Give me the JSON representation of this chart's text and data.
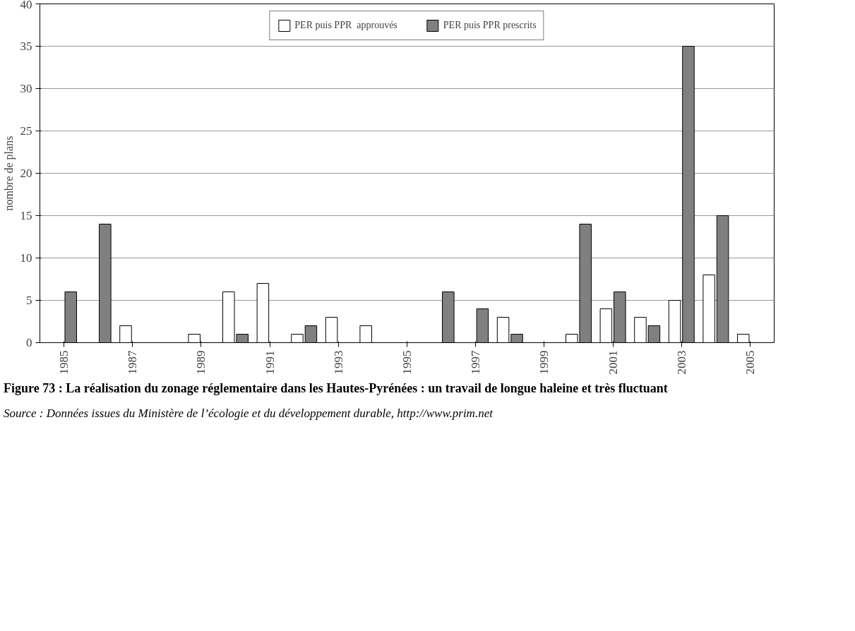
{
  "chart_data": {
    "type": "bar",
    "title": "Figure 73 : La réalisation du zonage réglementaire dans les Hautes-Pyrénées : un travail de longue haleine et très fluctuant",
    "ylabel": "nombre de plans",
    "categories": [
      "1985",
      null,
      "1987",
      null,
      "1989",
      null,
      "1991",
      null,
      "1993",
      null,
      "1995",
      null,
      "1997",
      null,
      "1999",
      null,
      "2001",
      null,
      "2003",
      null,
      "2005"
    ],
    "series": [
      {
        "name": "PER puis PPR  approuvés",
        "color": "#ffffff",
        "values": [
          null,
          null,
          2,
          null,
          1,
          6,
          7,
          1,
          3,
          2,
          null,
          null,
          null,
          3,
          null,
          1,
          4,
          3,
          5,
          8,
          1
        ]
      },
      {
        "name": "PER puis PPR prescrits",
        "color": "#808080",
        "values": [
          6,
          14,
          null,
          null,
          null,
          1,
          null,
          2,
          null,
          null,
          null,
          6,
          4,
          1,
          null,
          14,
          6,
          2,
          35,
          15,
          null
        ]
      }
    ],
    "ylim": [
      0,
      40
    ],
    "yticks": [
      0,
      5,
      10,
      15,
      20,
      25,
      30,
      35,
      40
    ],
    "grid": "y",
    "legend": "top",
    "annotations": [
      "Source : Données issues du Ministère de l’écologie et du développement durable, http://www.prim.net"
    ]
  }
}
